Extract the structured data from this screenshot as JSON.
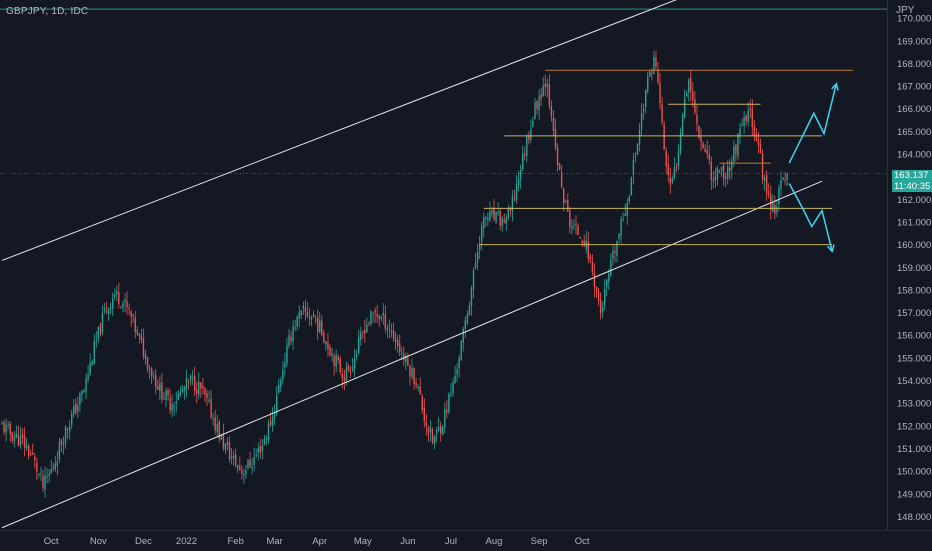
{
  "header": {
    "symbol_title": "GBPJPY, 1D, IDC"
  },
  "price_axis": {
    "currency": "JPY",
    "last_price": "163.137",
    "countdown": "11:40:35"
  },
  "colors": {
    "background": "#141823",
    "up_candle": "#26a69a",
    "down_candle": "#ef5350",
    "channel_lines": "#e6e6e6",
    "support_resistance_orange": "#c77a2e",
    "support_resistance_yellow": "#c9b458",
    "projection_arrows": "#38d6f5",
    "top_green_line": "#26a69a"
  },
  "chart_data": {
    "type": "candlestick",
    "title": "GBPJPY, 1D, IDC",
    "y_unit": "JPY",
    "ylim": [
      147.4,
      170.8
    ],
    "y_ticks": [
      148,
      149,
      150,
      151,
      152,
      153,
      154,
      155,
      156,
      157,
      158,
      159,
      160,
      161,
      162,
      163,
      164,
      165,
      166,
      167,
      168,
      169,
      170
    ],
    "x_ticks": [
      "Oct",
      "Nov",
      "Dec",
      "2022",
      "Feb",
      "Mar",
      "Apr",
      "May",
      "Jun",
      "Jul",
      "Aug",
      "Sep",
      "Oct"
    ],
    "last_price": 163.137,
    "close_path": [
      [
        0,
        152.0
      ],
      [
        5,
        151.6
      ],
      [
        10,
        151.3
      ],
      [
        15,
        150.6
      ],
      [
        20,
        149.3
      ],
      [
        25,
        150.2
      ],
      [
        30,
        151.6
      ],
      [
        35,
        152.6
      ],
      [
        40,
        153.6
      ],
      [
        45,
        155.4
      ],
      [
        50,
        157.0
      ],
      [
        55,
        157.8
      ],
      [
        58,
        157.6
      ],
      [
        62,
        157.0
      ],
      [
        67,
        155.8
      ],
      [
        72,
        154.6
      ],
      [
        77,
        153.6
      ],
      [
        82,
        153.0
      ],
      [
        87,
        153.4
      ],
      [
        92,
        154.0
      ],
      [
        97,
        153.6
      ],
      [
        102,
        152.6
      ],
      [
        107,
        151.4
      ],
      [
        112,
        150.6
      ],
      [
        117,
        150.0
      ],
      [
        122,
        150.4
      ],
      [
        127,
        151.2
      ],
      [
        132,
        152.4
      ],
      [
        137,
        154.6
      ],
      [
        142,
        156.4
      ],
      [
        147,
        157.0
      ],
      [
        152,
        156.8
      ],
      [
        157,
        156.0
      ],
      [
        162,
        155.0
      ],
      [
        167,
        154.2
      ],
      [
        172,
        155.0
      ],
      [
        177,
        156.4
      ],
      [
        182,
        157.0
      ],
      [
        187,
        156.6
      ],
      [
        192,
        155.8
      ],
      [
        197,
        154.8
      ],
      [
        202,
        154.0
      ],
      [
        206,
        152.4
      ],
      [
        210,
        151.3
      ],
      [
        215,
        152.2
      ],
      [
        220,
        153.8
      ],
      [
        225,
        156.0
      ],
      [
        230,
        158.6
      ],
      [
        233,
        160.4
      ],
      [
        236,
        161.2
      ],
      [
        240,
        161.2
      ],
      [
        244,
        161.0
      ],
      [
        248,
        161.4
      ],
      [
        252,
        163.0
      ],
      [
        256,
        164.6
      ],
      [
        260,
        166.0
      ],
      [
        263,
        166.8
      ],
      [
        266,
        167.4
      ],
      [
        268,
        165.4
      ],
      [
        271,
        163.6
      ],
      [
        274,
        162.0
      ],
      [
        277,
        161.0
      ],
      [
        280,
        160.6
      ],
      [
        283,
        160.4
      ],
      [
        286,
        159.6
      ],
      [
        289,
        158.4
      ],
      [
        292,
        157.0
      ],
      [
        295,
        158.2
      ],
      [
        298,
        159.4
      ],
      [
        302,
        160.8
      ],
      [
        306,
        162.4
      ],
      [
        310,
        164.6
      ],
      [
        314,
        166.8
      ],
      [
        318,
        168.2
      ],
      [
        320,
        167.2
      ],
      [
        323,
        164.2
      ],
      [
        326,
        162.4
      ],
      [
        329,
        163.6
      ],
      [
        332,
        166.0
      ],
      [
        335,
        167.4
      ],
      [
        338,
        165.8
      ],
      [
        341,
        164.6
      ],
      [
        344,
        164.0
      ],
      [
        347,
        162.8
      ],
      [
        350,
        163.4
      ],
      [
        353,
        163.0
      ],
      [
        356,
        163.8
      ],
      [
        359,
        164.6
      ],
      [
        362,
        165.4
      ],
      [
        365,
        165.8
      ],
      [
        368,
        164.8
      ],
      [
        371,
        163.2
      ],
      [
        374,
        162.0
      ],
      [
        377,
        161.6
      ],
      [
        380,
        162.6
      ],
      [
        383,
        163.137
      ]
    ],
    "annotations": {
      "ascending_channel": {
        "upper": [
          [
            0,
            159.3
          ],
          [
            400,
            173.3
          ]
        ],
        "lower": [
          [
            0,
            147.5
          ],
          [
            400,
            162.8
          ]
        ]
      },
      "horizontal_levels": [
        {
          "price": 167.7,
          "from": 265,
          "to": 415,
          "color": "orange"
        },
        {
          "price": 166.2,
          "from": 325,
          "to": 370,
          "color": "yellow"
        },
        {
          "price": 164.8,
          "from": 245,
          "to": 400,
          "color": "yellow"
        },
        {
          "price": 163.6,
          "from": 350,
          "to": 375,
          "color": "orange"
        },
        {
          "price": 161.6,
          "from": 235,
          "to": 405,
          "color": "yellow"
        },
        {
          "price": 160.0,
          "from": 233,
          "to": 405,
          "color": "yellow"
        }
      ],
      "projection_up": [
        [
          384,
          163.6
        ],
        [
          390,
          164.7
        ],
        [
          396,
          165.8
        ],
        [
          401,
          164.9
        ],
        [
          407,
          167.1
        ]
      ],
      "projection_down": [
        [
          384,
          162.7
        ],
        [
          390,
          161.7
        ],
        [
          395,
          160.8
        ],
        [
          400,
          161.5
        ],
        [
          405,
          159.7
        ]
      ]
    }
  }
}
